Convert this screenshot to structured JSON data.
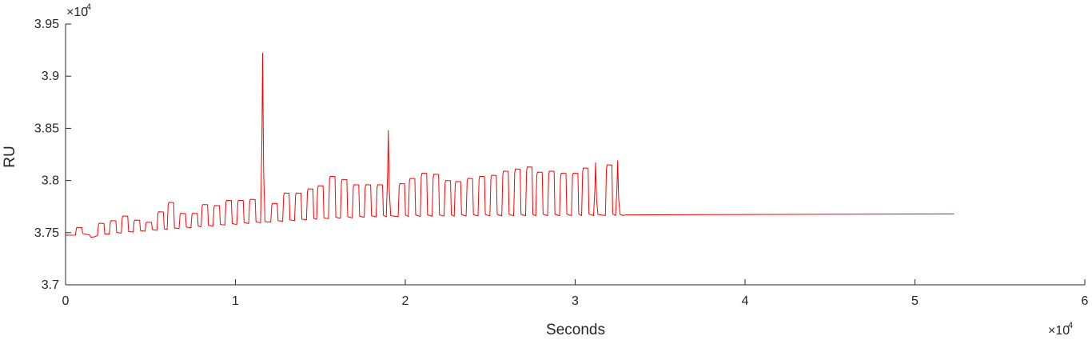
{
  "chart_data": {
    "type": "line",
    "xlabel": "Seconds",
    "ylabel": "RU",
    "xlim": [
      0,
      60000
    ],
    "ylim": [
      37000,
      39500
    ],
    "x_ticks": [
      0,
      10000,
      20000,
      30000,
      40000,
      50000,
      60000
    ],
    "x_tick_labels": [
      "0",
      "1",
      "2",
      "3",
      "4",
      "5",
      "6"
    ],
    "y_ticks": [
      37000,
      37500,
      38000,
      38500,
      39000,
      39500
    ],
    "y_tick_labels": [
      "3.7",
      "3.75",
      "3.8",
      "3.85",
      "3.9",
      "3.95"
    ],
    "x_multiplier": "×10",
    "x_multiplier_exp": "4",
    "y_multiplier": "×10",
    "y_multiplier_exp": "4",
    "grid": false,
    "series_color": "#ff0000",
    "series": [
      {
        "baseline": [
          [
            0,
            37475
          ],
          [
            1400,
            37478
          ],
          [
            1500,
            37455
          ],
          [
            1700,
            37460
          ],
          [
            2000,
            37480
          ],
          [
            10000,
            37580
          ],
          [
            15000,
            37630
          ],
          [
            18000,
            37650
          ],
          [
            20000,
            37655
          ],
          [
            25000,
            37660
          ],
          [
            30000,
            37663
          ],
          [
            32800,
            37665
          ],
          [
            33000,
            37670
          ],
          [
            52300,
            37680
          ]
        ],
        "peaks": [
          [
            700,
            37550
          ],
          [
            2000,
            37590
          ],
          [
            2700,
            37615
          ],
          [
            3400,
            37660
          ],
          [
            4100,
            37620
          ],
          [
            4800,
            37600
          ],
          [
            5500,
            37700
          ],
          [
            6100,
            37790
          ],
          [
            6800,
            37685
          ],
          [
            7500,
            37685
          ],
          [
            8100,
            37770
          ],
          [
            8800,
            37760
          ],
          [
            9500,
            37810
          ],
          [
            10200,
            37810
          ],
          [
            10900,
            37820
          ],
          [
            11600,
            39220
          ],
          [
            12200,
            37780
          ],
          [
            12900,
            37880
          ],
          [
            13600,
            37880
          ],
          [
            14300,
            37920
          ],
          [
            14900,
            37950
          ],
          [
            15600,
            38040
          ],
          [
            16300,
            38010
          ],
          [
            17000,
            37960
          ],
          [
            17700,
            37960
          ],
          [
            18400,
            37960
          ],
          [
            19000,
            38480
          ],
          [
            19700,
            37970
          ],
          [
            20300,
            38020
          ],
          [
            21000,
            38070
          ],
          [
            21700,
            38060
          ],
          [
            22400,
            38000
          ],
          [
            23000,
            37990
          ],
          [
            23700,
            38020
          ],
          [
            24400,
            38040
          ],
          [
            25100,
            38050
          ],
          [
            25800,
            38090
          ],
          [
            26500,
            38110
          ],
          [
            27200,
            38130
          ],
          [
            27800,
            38080
          ],
          [
            28500,
            38090
          ],
          [
            29200,
            38070
          ],
          [
            29900,
            38070
          ],
          [
            30500,
            38120
          ],
          [
            31200,
            38170
          ],
          [
            31900,
            38150
          ],
          [
            32500,
            38190
          ]
        ]
      }
    ]
  }
}
